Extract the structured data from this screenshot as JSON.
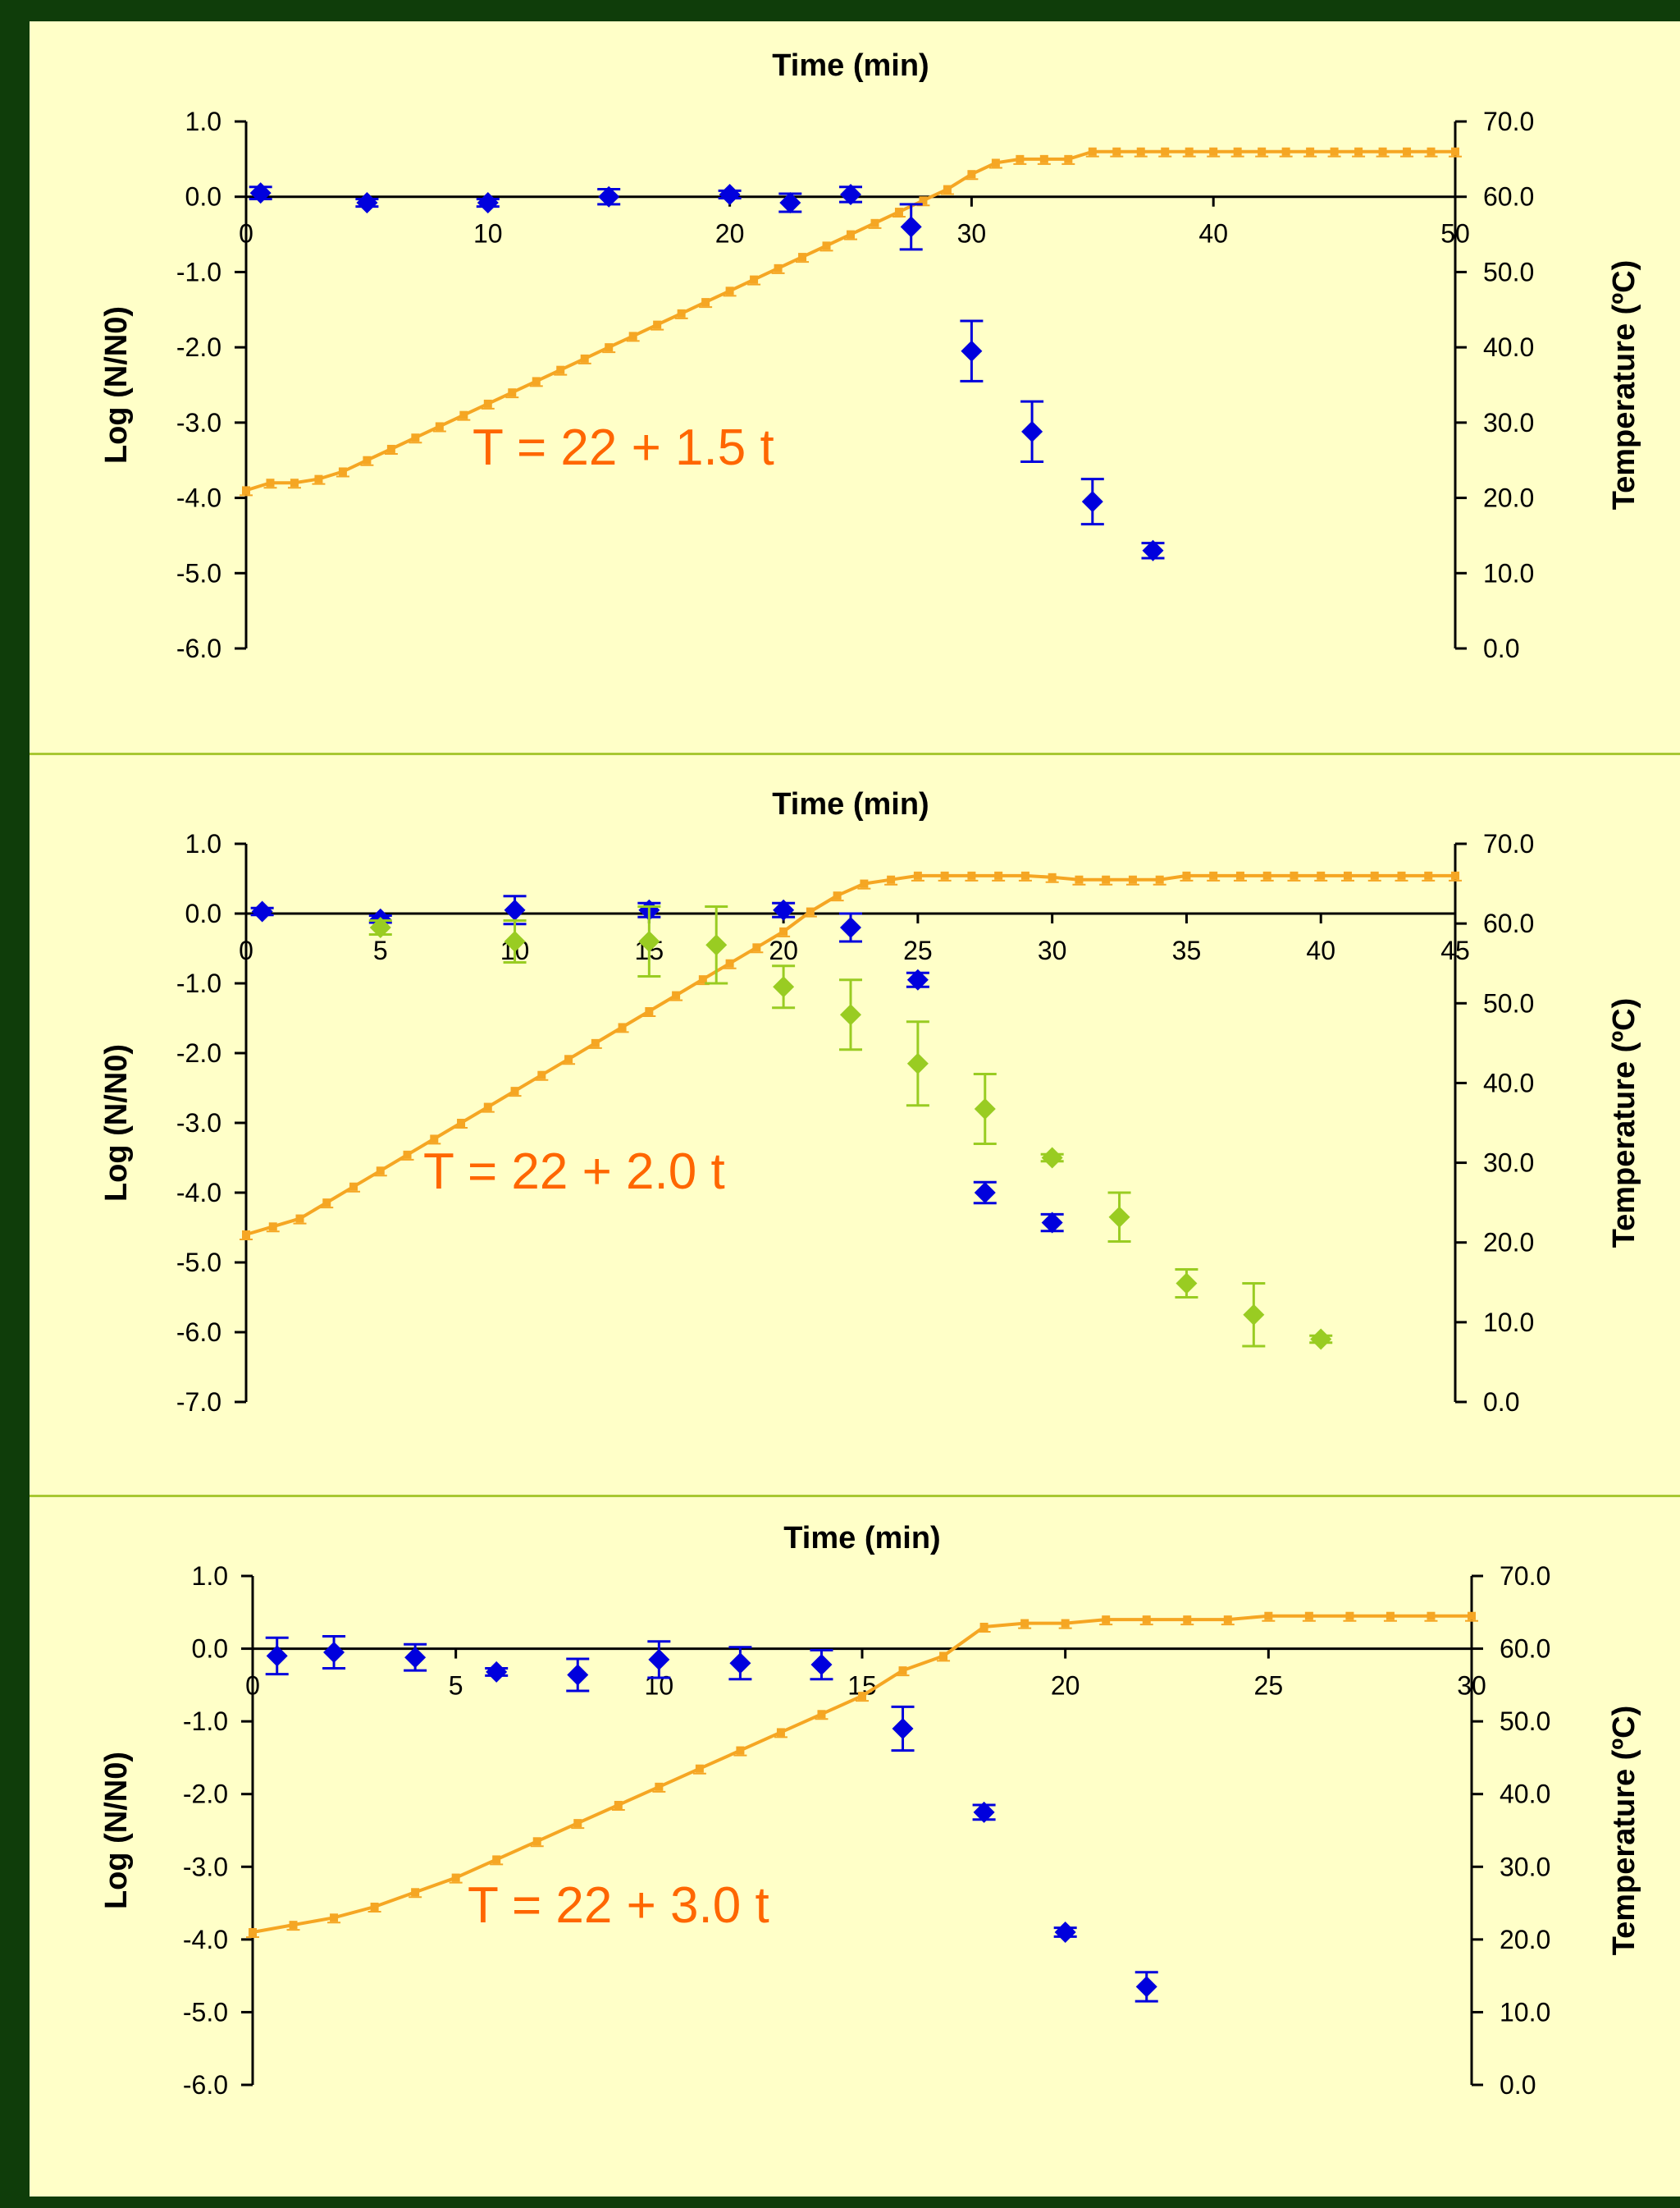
{
  "chart_data": [
    {
      "type": "scatter",
      "x_axis": {
        "label": "Time (min)",
        "lim": [
          0,
          50
        ],
        "ticks": [
          "0",
          "10",
          "20",
          "30",
          "40",
          "50"
        ]
      },
      "y_left": {
        "label": "Log (N/N0)",
        "lim": [
          -6,
          1
        ],
        "ticks": [
          "1.0",
          "0.0",
          "-1.0",
          "-2.0",
          "-3.0",
          "-4.0",
          "-5.0",
          "-6.0"
        ]
      },
      "y_right": {
        "label": "Temperature (ºC)",
        "lim": [
          0,
          70
        ],
        "ticks": [
          "70.0",
          "60.0",
          "50.0",
          "40.0",
          "30.0",
          "20.0",
          "10.0",
          "0.0"
        ]
      },
      "annotation": "T = 22 + 1.5 t",
      "temperature": {
        "color": "#f5a623",
        "x": [
          0,
          1,
          2,
          3,
          4,
          5,
          6,
          7,
          8,
          9,
          10,
          11,
          12,
          13,
          14,
          15,
          16,
          17,
          18,
          19,
          20,
          21,
          22,
          23,
          24,
          25,
          26,
          27,
          28,
          29,
          30,
          31,
          32,
          33,
          34,
          35,
          36,
          37,
          38,
          39,
          40,
          41,
          42,
          43,
          44,
          45,
          46,
          47,
          48,
          49,
          50
        ],
        "y": [
          21,
          22,
          22,
          22.5,
          23.5,
          25,
          26.5,
          28,
          29.5,
          31,
          32.5,
          34,
          35.5,
          37,
          38.5,
          40,
          41.5,
          43,
          44.5,
          46,
          47.5,
          49,
          50.5,
          52,
          53.5,
          55,
          56.5,
          58,
          59.5,
          61,
          63,
          64.5,
          65,
          65,
          65,
          66,
          66,
          66,
          66,
          66,
          66,
          66,
          66,
          66,
          66,
          66,
          66,
          66,
          66,
          66,
          66
        ]
      },
      "series": [
        {
          "color": "#0000dd",
          "x": [
            0.6,
            5,
            10,
            15,
            20,
            22.5,
            25,
            27.5,
            30,
            32.5,
            35,
            37.5
          ],
          "y": [
            0.05,
            -0.08,
            -0.08,
            0.0,
            0.03,
            -0.08,
            0.03,
            -0.4,
            -2.05,
            -3.12,
            -4.05,
            -4.7
          ],
          "err": [
            0.08,
            0.05,
            0.05,
            0.1,
            0.05,
            0.12,
            0.1,
            0.3,
            0.4,
            0.4,
            0.3,
            0.1
          ]
        }
      ]
    },
    {
      "type": "scatter",
      "x_axis": {
        "label": "Time (min)",
        "lim": [
          0,
          45
        ],
        "ticks": [
          "0",
          "5",
          "10",
          "15",
          "20",
          "25",
          "30",
          "35",
          "40",
          "45"
        ]
      },
      "y_left": {
        "label": "Log (N/N0)",
        "lim": [
          -7,
          1
        ],
        "ticks": [
          "1.0",
          "0.0",
          "-1.0",
          "-2.0",
          "-3.0",
          "-4.0",
          "-5.0",
          "-6.0",
          "-7.0"
        ]
      },
      "y_right": {
        "label": "Temperature (ºC)",
        "lim": [
          0,
          70
        ],
        "ticks": [
          "70.0",
          "60.0",
          "50.0",
          "40.0",
          "30.0",
          "20.0",
          "10.0",
          "0.0"
        ]
      },
      "annotation": "T = 22 + 2.0 t",
      "temperature": {
        "color": "#f5a623",
        "x": [
          0,
          1,
          2,
          3,
          4,
          5,
          6,
          7,
          8,
          9,
          10,
          11,
          12,
          13,
          14,
          15,
          16,
          17,
          18,
          19,
          20,
          21,
          22,
          23,
          24,
          25,
          26,
          27,
          28,
          29,
          30,
          31,
          32,
          33,
          34,
          35,
          36,
          37,
          38,
          39,
          40,
          41,
          42,
          43,
          44,
          45
        ],
        "y": [
          21,
          22,
          23,
          25,
          27,
          29,
          31,
          33,
          35,
          37,
          39,
          41,
          43,
          45,
          47,
          49,
          51,
          53,
          55,
          57,
          59,
          61.5,
          63.5,
          65,
          65.5,
          66,
          66,
          66,
          66,
          66,
          65.8,
          65.5,
          65.5,
          65.5,
          65.5,
          66,
          66,
          66,
          66,
          66,
          66,
          66,
          66,
          66,
          66,
          66
        ]
      },
      "series": [
        {
          "color": "#0000dd",
          "x": [
            0.6,
            5,
            10,
            15,
            20,
            22.5,
            25,
            27.5,
            30
          ],
          "y": [
            0.03,
            -0.08,
            0.05,
            0.05,
            0.05,
            -0.2,
            -0.95,
            -4.0,
            -4.43
          ],
          "err": [
            0.05,
            0.05,
            0.2,
            0.1,
            0.1,
            0.2,
            0.1,
            0.15,
            0.12
          ]
        },
        {
          "color": "#99cc22",
          "x": [
            5,
            10,
            15,
            17.5,
            20,
            22.5,
            25,
            27.5,
            30,
            32.5,
            35,
            37.5,
            40
          ],
          "y": [
            -0.2,
            -0.4,
            -0.4,
            -0.45,
            -1.05,
            -1.45,
            -2.15,
            -2.8,
            -3.5,
            -4.35,
            -5.3,
            -5.75,
            -6.1
          ],
          "err": [
            0.1,
            0.3,
            0.5,
            0.55,
            0.3,
            0.5,
            0.6,
            0.5,
            0.05,
            0.35,
            0.2,
            0.45,
            0.05
          ]
        }
      ]
    },
    {
      "type": "scatter",
      "x_axis": {
        "label": "Time (min)",
        "lim": [
          0,
          30
        ],
        "ticks": [
          "0",
          "5",
          "10",
          "15",
          "20",
          "25",
          "30"
        ]
      },
      "y_left": {
        "label": "Log (N/N0)",
        "lim": [
          -6,
          1
        ],
        "ticks": [
          "1.0",
          "0.0",
          "-1.0",
          "-2.0",
          "-3.0",
          "-4.0",
          "-5.0",
          "-6.0"
        ]
      },
      "y_right": {
        "label": "Temperature (ºC)",
        "lim": [
          0,
          70
        ],
        "ticks": [
          "70.0",
          "60.0",
          "50.0",
          "40.0",
          "30.0",
          "20.0",
          "10.0",
          "0.0"
        ]
      },
      "annotation": "T = 22 + 3.0 t",
      "temperature": {
        "color": "#f5a623",
        "x": [
          0,
          1,
          2,
          3,
          4,
          5,
          6,
          7,
          8,
          9,
          10,
          11,
          12,
          13,
          14,
          15,
          16,
          17,
          18,
          19,
          20,
          21,
          22,
          23,
          24,
          25,
          26,
          27,
          28,
          29,
          30
        ],
        "y": [
          21,
          22,
          23,
          24.5,
          26.5,
          28.5,
          31,
          33.5,
          36,
          38.5,
          41,
          43.5,
          46,
          48.5,
          51,
          53.5,
          57,
          59,
          63,
          63.5,
          63.5,
          64,
          64,
          64,
          64,
          64.5,
          64.5,
          64.5,
          64.5,
          64.5,
          64.5
        ]
      },
      "series": [
        {
          "color": "#0000dd",
          "x": [
            0.6,
            2,
            4,
            6,
            8,
            10,
            12,
            14,
            16,
            18,
            20,
            22
          ],
          "y": [
            -0.1,
            -0.05,
            -0.12,
            -0.32,
            -0.36,
            -0.15,
            -0.2,
            -0.22,
            -1.1,
            -2.25,
            -3.9,
            -4.65
          ],
          "err": [
            0.25,
            0.22,
            0.18,
            0.05,
            0.22,
            0.25,
            0.22,
            0.2,
            0.3,
            0.1,
            0.06,
            0.2
          ]
        }
      ]
    }
  ]
}
